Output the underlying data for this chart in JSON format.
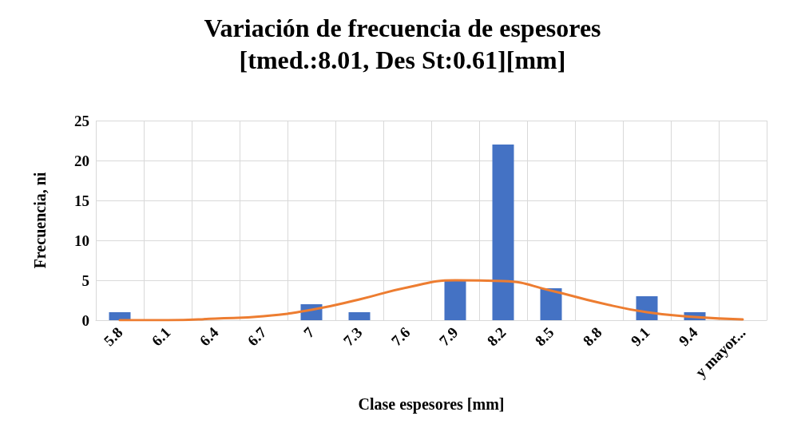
{
  "chart_data": {
    "type": "bar",
    "title": "Variación de frecuencia de espesores\n[tmed.:8.01, Des St:0.61][mm]",
    "xlabel": "Clase espesores [mm]",
    "ylabel": "Frecuencia, ni",
    "categories": [
      "5.8",
      "6.1",
      "6.4",
      "6.7",
      "7",
      "7.3",
      "7.6",
      "7.9",
      "8.2",
      "8.5",
      "8.8",
      "9.1",
      "9.4",
      "y mayor..."
    ],
    "series": [
      {
        "color": "#4472c4",
        "values": [
          1,
          0,
          0,
          0,
          2,
          1,
          0,
          5,
          22,
          4,
          0,
          3,
          1,
          0
        ]
      },
      {
        "type": "line",
        "color": "#ed7d31",
        "values": [
          0.0,
          0.0,
          0.2,
          0.5,
          1.3,
          2.6,
          4.1,
          5.0,
          4.9,
          3.7,
          2.2,
          1.0,
          0.4,
          0.1
        ]
      }
    ],
    "ylim": [
      0,
      25
    ],
    "yticks": [
      0,
      5,
      10,
      15,
      20,
      25
    ],
    "grid": true,
    "marker": "none",
    "line_style": "solid"
  }
}
